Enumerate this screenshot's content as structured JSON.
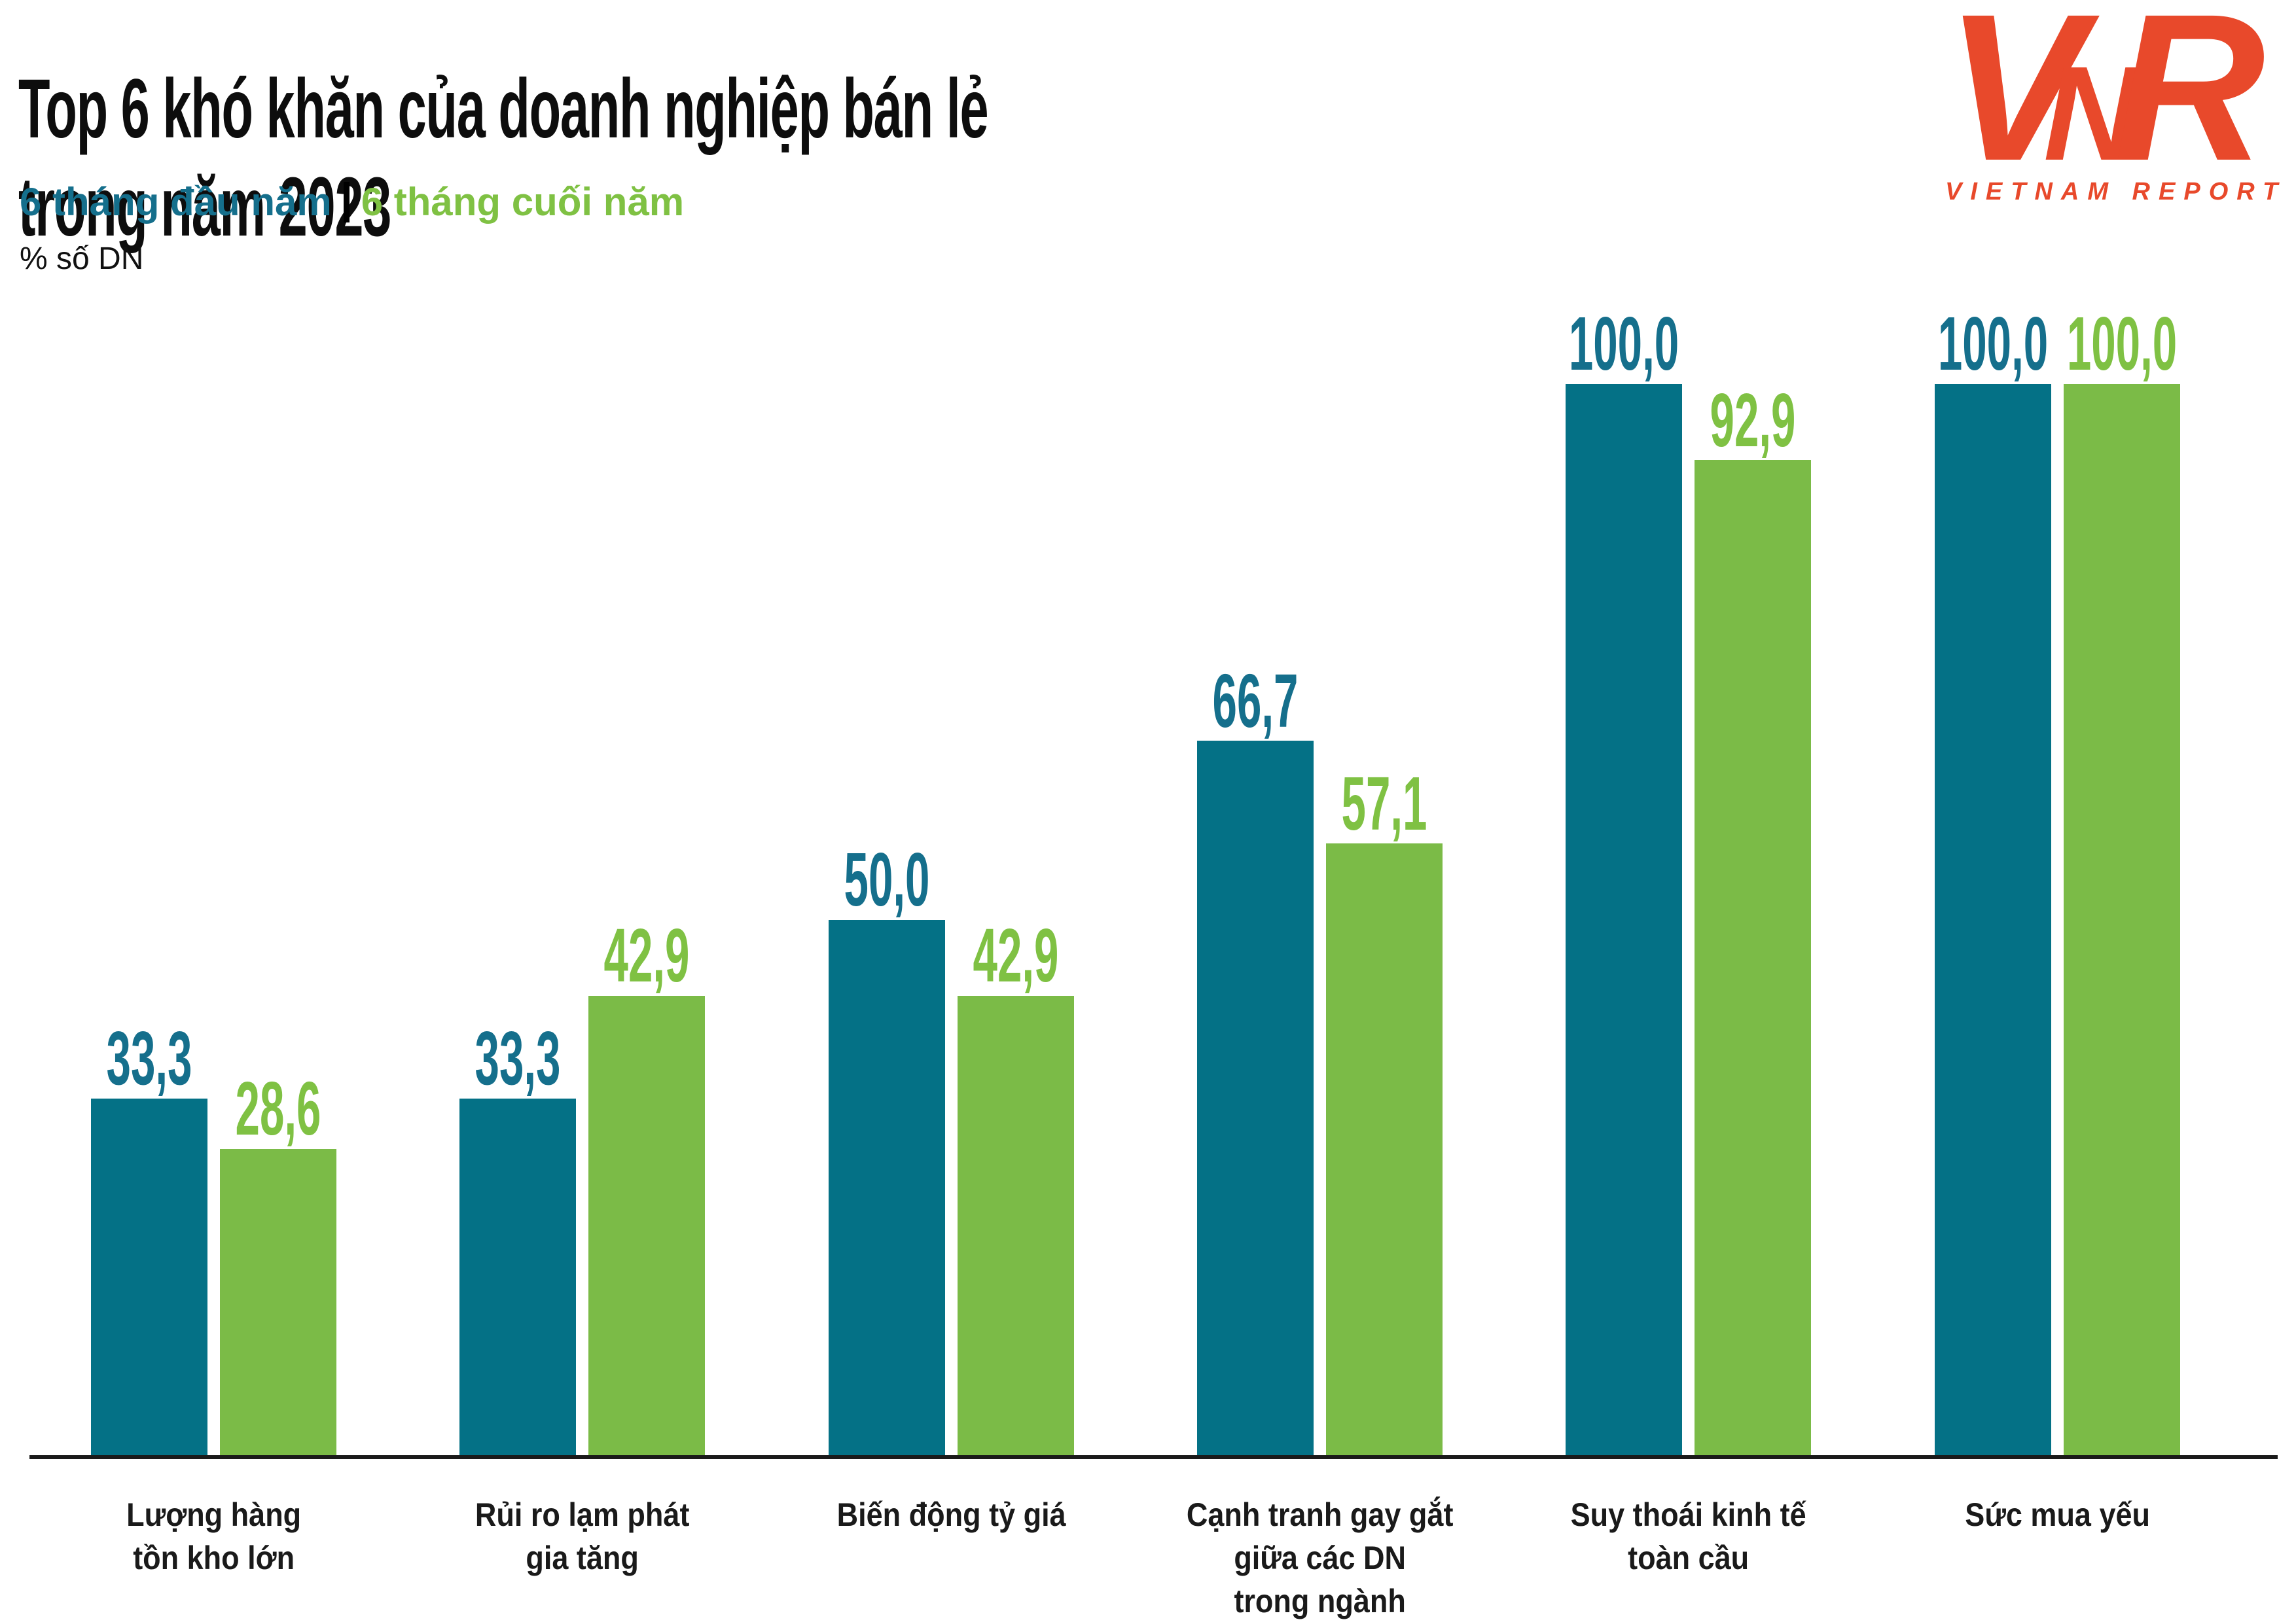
{
  "title": "Top 6 khó khăn của doanh nghiệp bán lẻ\ntrong năm 2023",
  "legend": {
    "first_half": "6 tháng đầu năm",
    "separator": "|",
    "second_half": "6 tháng cuối năm"
  },
  "unit_label": "% số DN",
  "logo": {
    "letters": [
      "V",
      "N",
      "R"
    ],
    "wordmark": "VIETNAM REPORT"
  },
  "colors": {
    "first_half_bar": "#047186",
    "second_half_bar": "#7BBB47",
    "first_half_text": "#156F8C",
    "second_half_text": "#7FC143",
    "logo": "#E8492B",
    "axis": "#1A1A1A",
    "text": "#111111"
  },
  "chart_data": {
    "type": "bar",
    "title": "Top 6 khó khăn của doanh nghiệp bán lẻ trong năm 2023",
    "xlabel": "",
    "ylabel": "% số DN",
    "ylim": [
      0,
      100
    ],
    "grid": false,
    "legend_position": "top-left",
    "categories": [
      "Lượng hàng\ntồn kho lớn",
      "Rủi ro lạm phát\ngia tăng",
      "Biến động tỷ giá",
      "Cạnh tranh gay gắt\ngiữa các DN\ntrong ngành",
      "Suy thoái kinh tế\ntoàn cầu",
      "Sức mua yếu"
    ],
    "series": [
      {
        "name": "6 tháng đầu năm",
        "values": [
          33.3,
          33.3,
          50.0,
          66.7,
          100.0,
          100.0
        ],
        "labels": [
          "33,3",
          "33,3",
          "50,0",
          "66,7",
          "100,0",
          "100,0"
        ]
      },
      {
        "name": "6 tháng cuối năm",
        "values": [
          28.6,
          42.9,
          42.9,
          57.1,
          92.9,
          100.0
        ],
        "labels": [
          "28,6",
          "42,9",
          "42,9",
          "57,1",
          "92,9",
          "100,0"
        ]
      }
    ]
  }
}
